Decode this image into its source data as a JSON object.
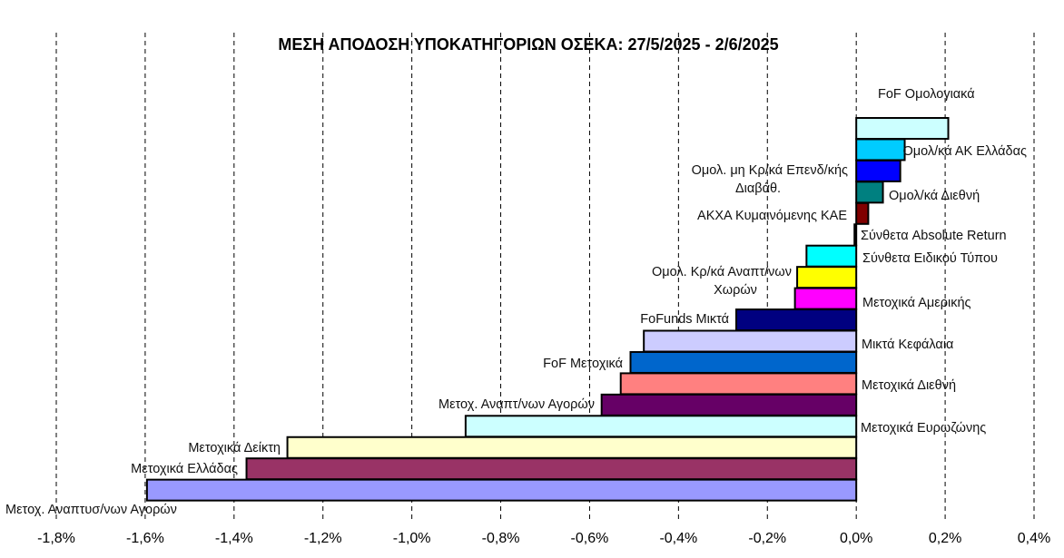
{
  "chart_data": {
    "type": "bar",
    "orientation": "horizontal",
    "title": "ΜΕΣΗ ΑΠΟΔΟΣΗ ΥΠΟΚΑΤΗΓΟΡΙΩΝ ΟΣΕΚΑ: 27/5/2025 - 2/6/2025",
    "xlabel": "",
    "ylabel": "",
    "xlim": [
      -1.8,
      0.4
    ],
    "x_ticks": [
      -1.8,
      -1.6,
      -1.4,
      -1.2,
      -1.0,
      -0.8,
      -0.6,
      -0.4,
      -0.2,
      0.0,
      0.2,
      0.4
    ],
    "x_tick_labels": [
      "-1,8%",
      "-1,6%",
      "-1,4%",
      "-1,2%",
      "-1,0%",
      "-0,8%",
      "-0,6%",
      "-0,4%",
      "-0,2%",
      "0,0%",
      "0,2%",
      "0,4%"
    ],
    "grid": true,
    "legend": "none",
    "bars": [
      {
        "label": "FoF Ομολογιακά",
        "value": 0.0,
        "color": "#ffffff"
      },
      {
        "label": "",
        "value": 0.207,
        "color": "#ccffff"
      },
      {
        "label": "Ομολ/κά ΑΚ Ελλάδας",
        "value": 0.109,
        "color": "#00ccff"
      },
      {
        "label": "Ομολ. μη Κρ/κά Επενδ/κής Διαβάθ.",
        "value": 0.099,
        "color": "#0000ff"
      },
      {
        "label": "Ομολ/κά Διεθνή",
        "value": 0.06,
        "color": "#008080"
      },
      {
        "label": "ΑΚΧΑ Κυμαινόμενης  ΚΑΕ",
        "value": 0.027,
        "color": "#800000"
      },
      {
        "label": "Σύνθετα Absolute  Return",
        "value": -0.004,
        "color": "#000080"
      },
      {
        "label": "Σύνθετα Ειδικού  Τύπου",
        "value": -0.112,
        "color": "#00ffff"
      },
      {
        "label": "Ομολ. Κρ/κά Αναπτ/νων Χωρών",
        "value": -0.133,
        "color": "#ffff00"
      },
      {
        "label": "Μετοχικά Αμερικής",
        "value": -0.138,
        "color": "#ff00ff"
      },
      {
        "label": "FoFunds Μικτά",
        "value": -0.27,
        "color": "#000080"
      },
      {
        "label": "Μικτά  Κεφάλαια",
        "value": -0.478,
        "color": "#ccccff"
      },
      {
        "label": "FoF Μετοχικά",
        "value": -0.508,
        "color": "#0066cc"
      },
      {
        "label": "Μετοχικά Διεθνή",
        "value": -0.53,
        "color": "#ff8080"
      },
      {
        "label": "Μετοχ. Αναπτ/νων  Αγορών",
        "value": -0.573,
        "color": "#660066"
      },
      {
        "label": "Μετοχικά Ευρωζώνης",
        "value": -0.879,
        "color": "#ccffff"
      },
      {
        "label": "Μετοχικά Δείκτη",
        "value": -1.28,
        "color": "#ffffcc"
      },
      {
        "label": "Μετοχικά Ελλάδας",
        "value": -1.372,
        "color": "#993366"
      },
      {
        "label": "Μετοχ. Αναπτυσ/νων  Αγορών",
        "value": -1.596,
        "color": "#9999ff"
      }
    ],
    "units": "%"
  }
}
